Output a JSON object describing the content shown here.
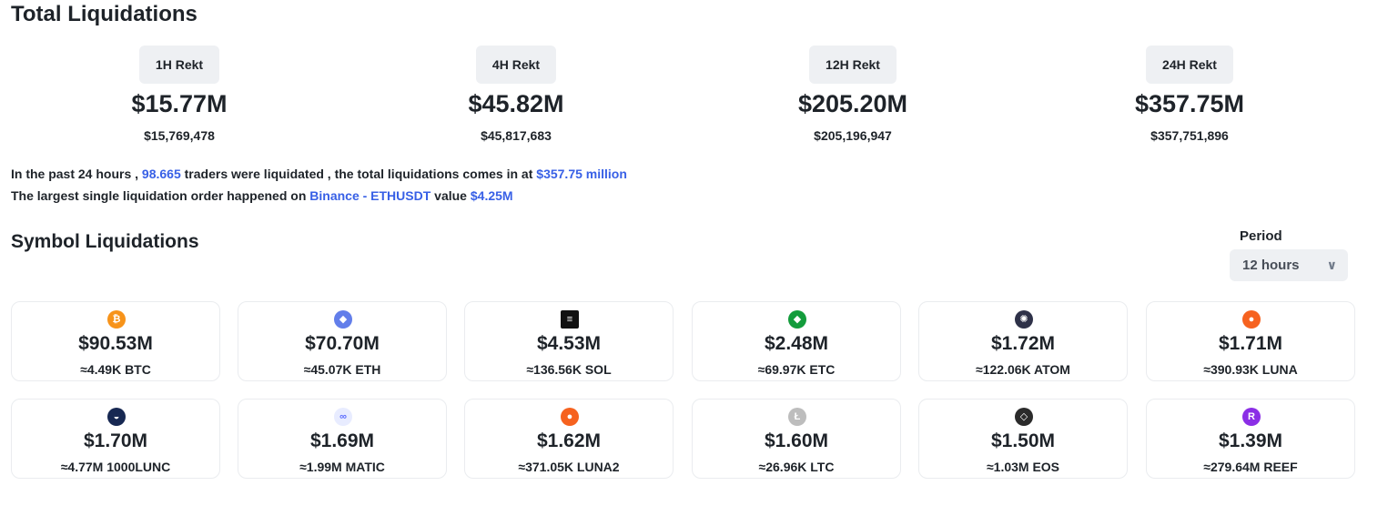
{
  "title": "Total Liquidations",
  "rekt": [
    {
      "label": "1H Rekt",
      "big": "$15.77M",
      "exact": "$15,769,478"
    },
    {
      "label": "4H Rekt",
      "big": "$45.82M",
      "exact": "$45,817,683"
    },
    {
      "label": "12H Rekt",
      "big": "$205.20M",
      "exact": "$205,196,947"
    },
    {
      "label": "24H Rekt",
      "big": "$357.75M",
      "exact": "$357,751,896"
    }
  ],
  "summary": {
    "line1_a": "In the past 24 hours , ",
    "traders": "98.665",
    "line1_b": " traders were liquidated , the total liquidations comes in at ",
    "total": "$357.75 million",
    "line2_a": "The largest single liquidation order happened on ",
    "exchange_pair": "Binance - ETHUSDT",
    "line2_b": " value ",
    "largest_value": "$4.25M"
  },
  "symbols_title": "Symbol Liquidations",
  "period": {
    "label": "Period",
    "selected": "12 hours"
  },
  "accent_color": "#3860e6",
  "symbols": [
    {
      "amount": "$90.53M",
      "qty": "≈4.49K BTC",
      "icon": "btc-icon",
      "color": "#f7931a",
      "glyph": "₿"
    },
    {
      "amount": "$70.70M",
      "qty": "≈45.07K ETH",
      "icon": "eth-icon",
      "color": "#627eea",
      "glyph": "◆"
    },
    {
      "amount": "$4.53M",
      "qty": "≈136.56K SOL",
      "icon": "sol-icon",
      "color": "#111111",
      "glyph": "≡"
    },
    {
      "amount": "$2.48M",
      "qty": "≈69.97K ETC",
      "icon": "etc-icon",
      "color": "#139c3c",
      "glyph": "◆"
    },
    {
      "amount": "$1.72M",
      "qty": "≈122.06K ATOM",
      "icon": "atom-icon",
      "color": "#2e3148",
      "glyph": "✺"
    },
    {
      "amount": "$1.71M",
      "qty": "≈390.93K LUNA",
      "icon": "luna-icon",
      "color": "#f6621f",
      "glyph": "●"
    },
    {
      "amount": "$1.70M",
      "qty": "≈4.77M 1000LUNC",
      "icon": "lunc-icon",
      "color": "#172852",
      "glyph": "◒"
    },
    {
      "amount": "$1.69M",
      "qty": "≈1.99M MATIC",
      "icon": "matic-icon",
      "color": "#e8ecff",
      "glyph": "∞"
    },
    {
      "amount": "$1.62M",
      "qty": "≈371.05K LUNA2",
      "icon": "luna2-icon",
      "color": "#f6621f",
      "glyph": "●"
    },
    {
      "amount": "$1.60M",
      "qty": "≈26.96K LTC",
      "icon": "ltc-icon",
      "color": "#bdbdbd",
      "glyph": "Ł"
    },
    {
      "amount": "$1.50M",
      "qty": "≈1.03M EOS",
      "icon": "eos-icon",
      "color": "#2b2b2b",
      "glyph": "◇"
    },
    {
      "amount": "$1.39M",
      "qty": "≈279.64M REEF",
      "icon": "reef-icon",
      "color": "#8b2ee6",
      "glyph": "R"
    }
  ]
}
